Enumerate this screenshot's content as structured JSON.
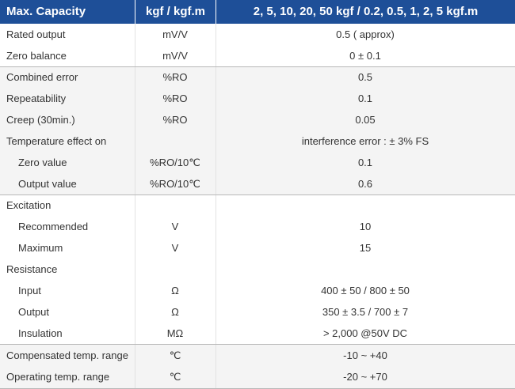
{
  "header": {
    "col1": "Max. Capacity",
    "col2": "kgf / kgf.m",
    "col3": "2, 5, 10, 20, 50 kgf / 0.2, 0.5, 1, 2, 5 kgf.m"
  },
  "rows": [
    {
      "label": "Rated output",
      "unit": "mV/V",
      "value": "0.5 ( approx)"
    },
    {
      "label": "Zero balance",
      "unit": "mV/V",
      "value": "0 ± 0.1"
    },
    {
      "label": "Combined error",
      "unit": "%RO",
      "value": "0.5"
    },
    {
      "label": "Repeatability",
      "unit": "%RO",
      "value": "0.1"
    },
    {
      "label": "Creep (30min.)",
      "unit": "%RO",
      "value": "0.05"
    },
    {
      "label": "Temperature effect on",
      "unit": "",
      "value": "interference error : ± 3% FS"
    },
    {
      "label": "Zero value",
      "unit": "%RO/10℃",
      "value": "0.1"
    },
    {
      "label": "Output  value",
      "unit": "%RO/10℃",
      "value": "0.6"
    },
    {
      "label": "Excitation",
      "unit": "",
      "value": ""
    },
    {
      "label": "Recommended",
      "unit": "V",
      "value": "10"
    },
    {
      "label": "Maximum",
      "unit": "V",
      "value": "15"
    },
    {
      "label": "Resistance",
      "unit": "",
      "value": ""
    },
    {
      "label": "Input",
      "unit": "Ω",
      "value": "400 ± 50 / 800 ± 50"
    },
    {
      "label": "Output",
      "unit": "Ω",
      "value": "350 ± 3.5 / 700 ± 7"
    },
    {
      "label": "Insulation",
      "unit": "MΩ",
      "value": "> 2,000  @50V DC"
    },
    {
      "label": "Compensated temp. range",
      "unit": "℃",
      "value": "-10 ~ +40"
    },
    {
      "label": "Operating temp. range",
      "unit": "℃",
      "value": "-20 ~ +70"
    }
  ]
}
